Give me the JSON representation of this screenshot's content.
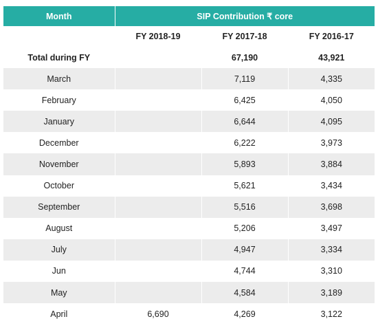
{
  "table": {
    "header_top": {
      "month": "Month",
      "group": "SIP Contribution ₹ core"
    },
    "columns": [
      "",
      "FY 2018-19",
      "FY 2017-18",
      "FY 2016-17"
    ],
    "rows": [
      {
        "month": "Total during FY",
        "fy2018_19": "",
        "fy2017_18": "67,190",
        "fy2016_17": "43,921"
      },
      {
        "month": "March",
        "fy2018_19": "",
        "fy2017_18": "7,119",
        "fy2016_17": "4,335"
      },
      {
        "month": "February",
        "fy2018_19": "",
        "fy2017_18": "6,425",
        "fy2016_17": "4,050"
      },
      {
        "month": "January",
        "fy2018_19": "",
        "fy2017_18": "6,644",
        "fy2016_17": "4,095"
      },
      {
        "month": "December",
        "fy2018_19": "",
        "fy2017_18": "6,222",
        "fy2016_17": "3,973"
      },
      {
        "month": "November",
        "fy2018_19": "",
        "fy2017_18": "5,893",
        "fy2016_17": "3,884"
      },
      {
        "month": "October",
        "fy2018_19": "",
        "fy2017_18": "5,621",
        "fy2016_17": "3,434"
      },
      {
        "month": "September",
        "fy2018_19": "",
        "fy2017_18": "5,516",
        "fy2016_17": "3,698"
      },
      {
        "month": "August",
        "fy2018_19": "",
        "fy2017_18": "5,206",
        "fy2016_17": "3,497"
      },
      {
        "month": "July",
        "fy2018_19": "",
        "fy2017_18": "4,947",
        "fy2016_17": "3,334"
      },
      {
        "month": "Jun",
        "fy2018_19": "",
        "fy2017_18": "4,744",
        "fy2016_17": "3,310"
      },
      {
        "month": "May",
        "fy2018_19": "",
        "fy2017_18": "4,584",
        "fy2016_17": "3,189"
      },
      {
        "month": "April",
        "fy2018_19": "6,690",
        "fy2017_18": "4,269",
        "fy2016_17": "3,122"
      }
    ]
  },
  "colors": {
    "header_bg": "#26ada4",
    "header_text": "#ffffff",
    "stripe_bg": "#ececec"
  }
}
